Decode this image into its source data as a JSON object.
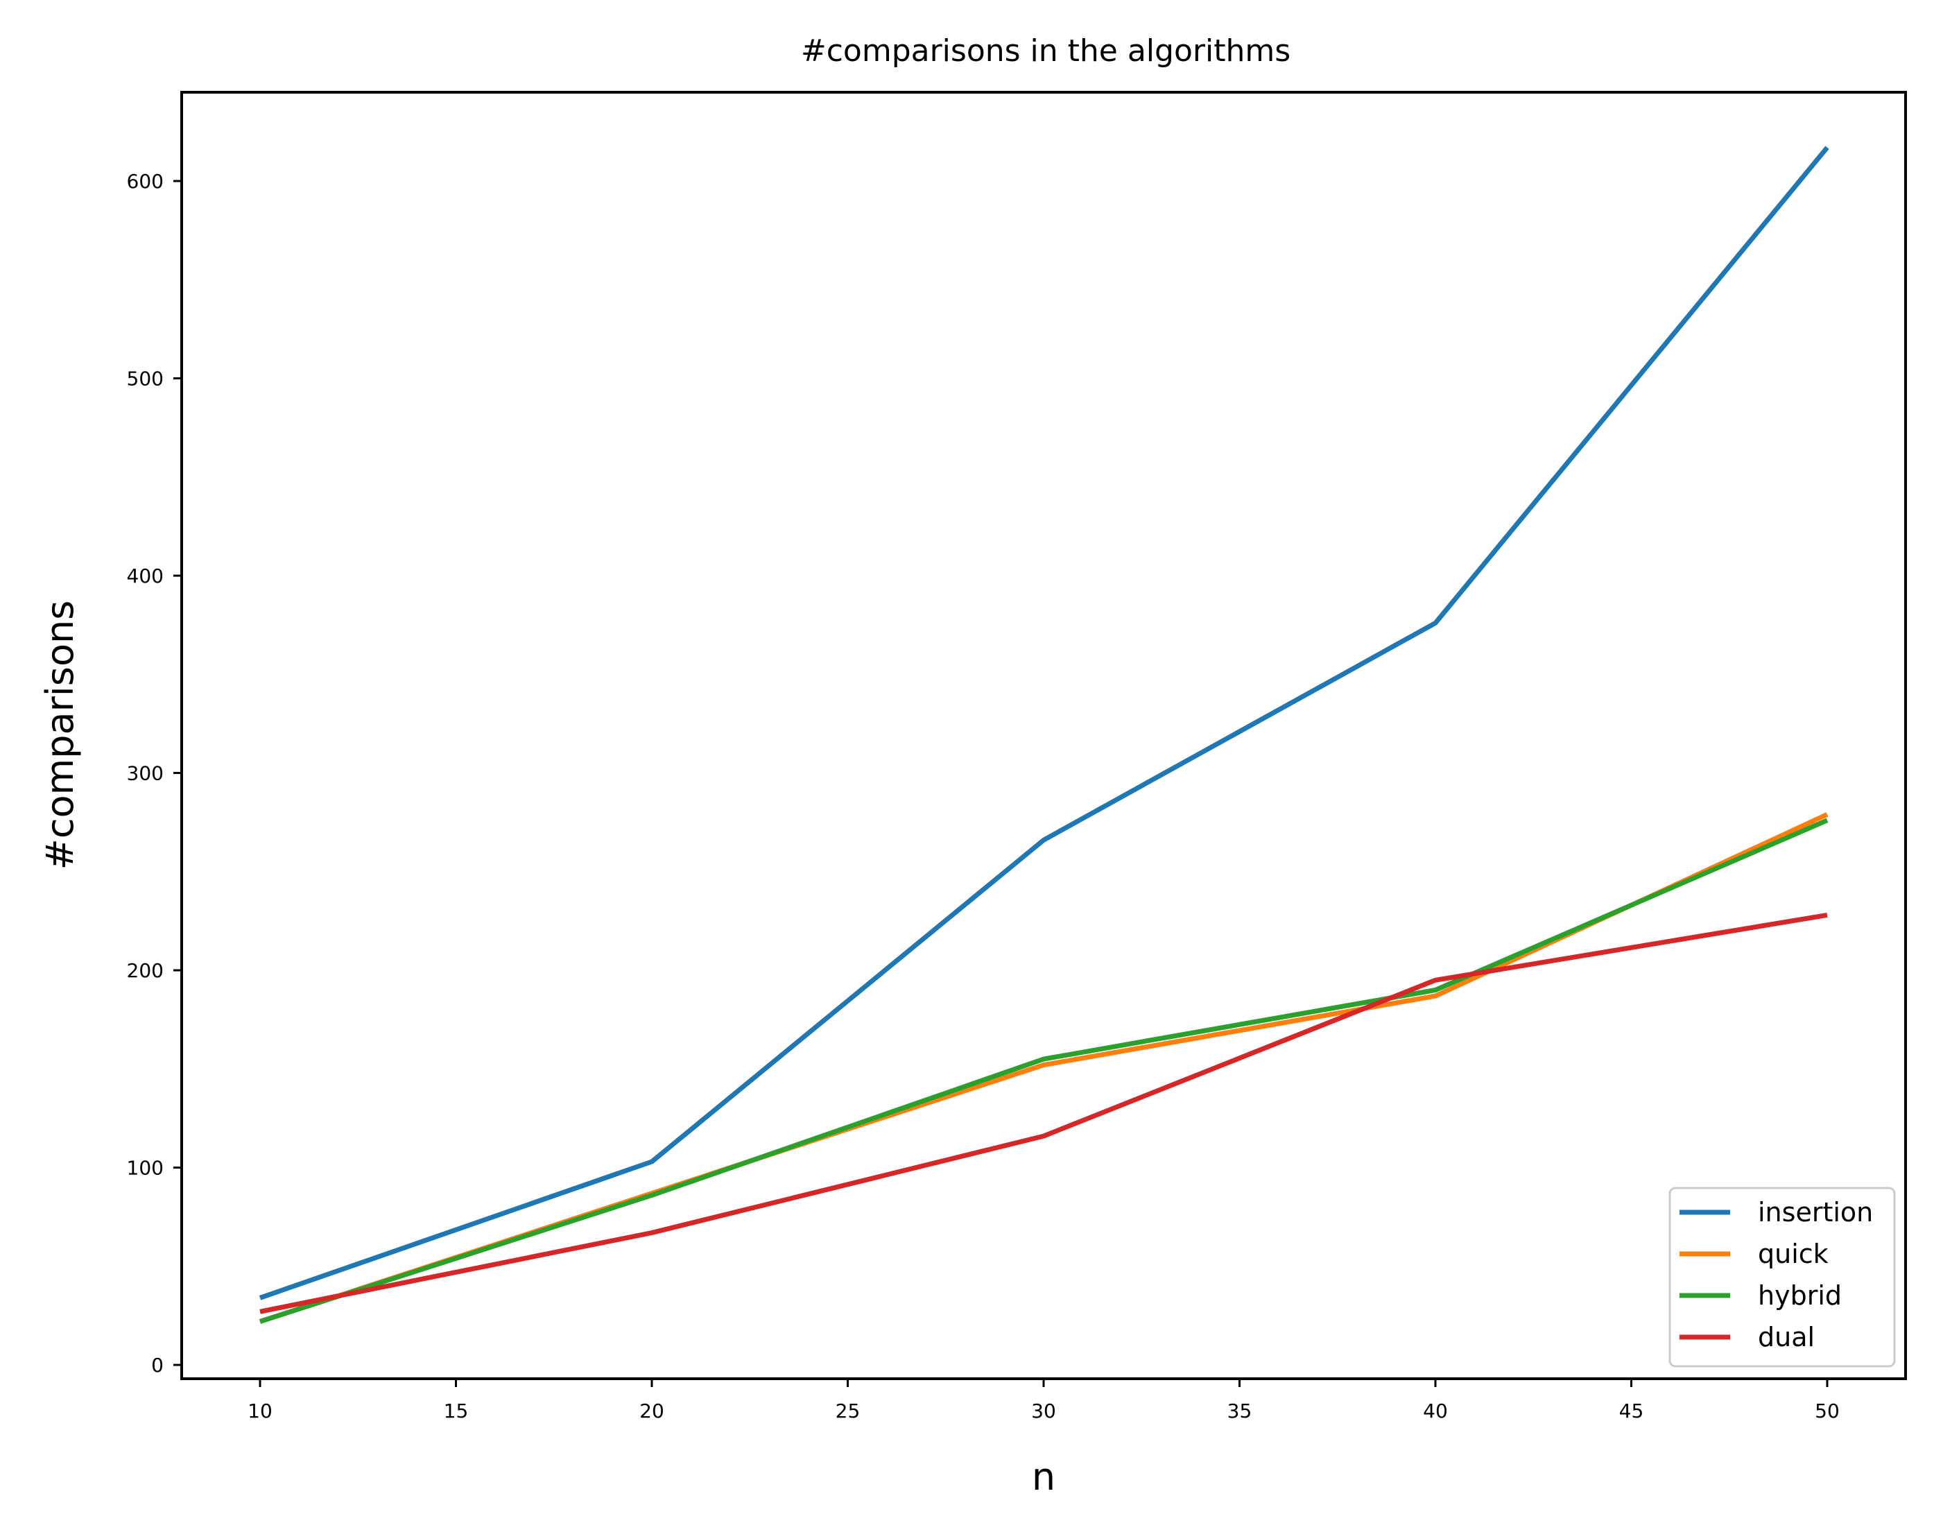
{
  "chart_data": {
    "type": "line",
    "title": "#comparisons in the algorithms",
    "xlabel": "n",
    "ylabel": "#comparisons",
    "x": [
      10,
      20,
      30,
      40,
      50
    ],
    "xlim": [
      8,
      52
    ],
    "ylim": [
      -7,
      645
    ],
    "xticks": [
      10,
      15,
      20,
      25,
      30,
      35,
      40,
      45,
      50
    ],
    "yticks": [
      0,
      100,
      200,
      300,
      400,
      500,
      600
    ],
    "grid": false,
    "legend_position": "lower-right",
    "series": [
      {
        "name": "insertion",
        "color": "#1f77b4",
        "values": [
          34,
          103,
          266,
          376,
          617
        ]
      },
      {
        "name": "quick",
        "color": "#ff7f0e",
        "values": [
          22,
          87,
          152,
          187,
          279
        ]
      },
      {
        "name": "hybrid",
        "color": "#2ca02c",
        "values": [
          22,
          86,
          155,
          190,
          276
        ]
      },
      {
        "name": "dual",
        "color": "#d62728",
        "values": [
          27,
          67,
          116,
          195,
          228
        ]
      }
    ]
  }
}
